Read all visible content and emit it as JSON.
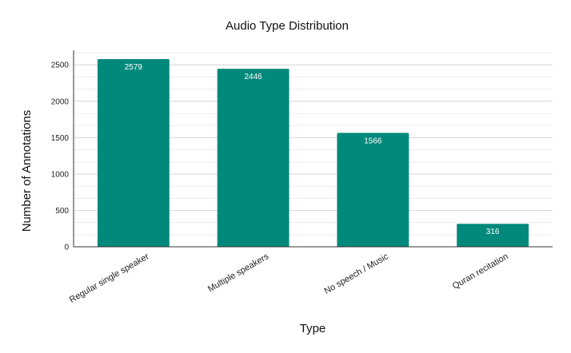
{
  "chart_data": {
    "type": "bar",
    "title": "Audio Type Distribution",
    "xlabel": "Type",
    "ylabel": "Number of Annotations",
    "categories": [
      "Regular single speaker",
      "Multiple speakers",
      "No speech / Music",
      "Quran recitation"
    ],
    "values": [
      2579,
      2446,
      1566,
      316
    ],
    "data_labels": [
      "2579",
      "2446",
      "1566",
      "316"
    ],
    "ylim": [
      0,
      2700
    ],
    "yticks": [
      0,
      500,
      1000,
      1500,
      2000,
      2500
    ],
    "ytick_labels": [
      "0",
      "500",
      "1000",
      "1500",
      "2000",
      "2500"
    ],
    "minor_grid_step": 166.67,
    "grid": true,
    "legend": "none",
    "colors": {
      "bar": "#03897b",
      "grid": "#d9d9d9",
      "axis": "#333333"
    }
  }
}
